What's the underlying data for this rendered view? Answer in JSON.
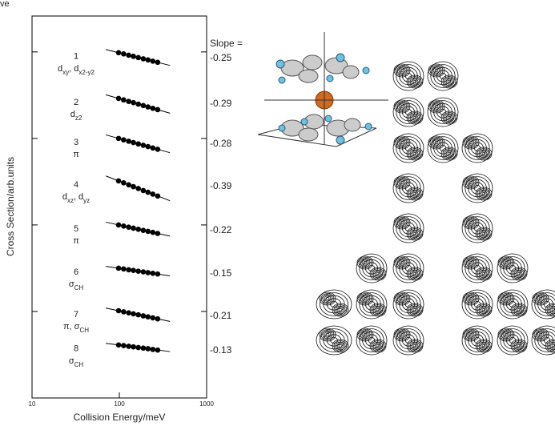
{
  "corner_text": "ve",
  "chart_data": {
    "type": "loglog-scatter-fit",
    "xlabel": "Collision Energy/meV",
    "ylabel": "Cross Section/arb.units",
    "slope_header": "Slope =",
    "xscale": "log",
    "yscale": "log",
    "xlim": [
      10,
      1000
    ],
    "xticks": [
      10,
      100,
      1000
    ],
    "ylim": [
      1,
      26000
    ],
    "yticks": [
      10,
      100,
      1000,
      10000
    ],
    "color": "#000000",
    "x": [
      98,
      112,
      128,
      145,
      165,
      188,
      213,
      242,
      275
    ],
    "series": [
      {
        "name": "1",
        "label": [
          "d",
          "xy",
          ", d",
          "x2-y2"
        ],
        "slope": -0.25,
        "values": [
          9800,
          9480,
          9160,
          8890,
          8600,
          8330,
          8080,
          7820,
          7580
        ]
      },
      {
        "name": "2",
        "label": [
          "d",
          "z2"
        ],
        "slope": -0.29,
        "values": [
          2900,
          2790,
          2680,
          2590,
          2490,
          2400,
          2310,
          2230,
          2150
        ]
      },
      {
        "name": "3",
        "label": [
          "π"
        ],
        "slope": -0.28,
        "values": [
          1000,
          963,
          928,
          896,
          864,
          833,
          805,
          776,
          749
        ]
      },
      {
        "name": "4",
        "label": [
          "d",
          "xz",
          ", d",
          "yz"
        ],
        "slope": -0.39,
        "values": [
          323,
          307,
          291,
          277,
          264,
          250,
          239,
          227,
          216
        ]
      },
      {
        "name": "5",
        "label": [
          "π"
        ],
        "slope": -0.22,
        "values": [
          100,
          97.1,
          94.3,
          91.7,
          89.2,
          86.6,
          84.3,
          82.0,
          79.7
        ]
      },
      {
        "name": "6",
        "label": [
          "σ",
          "CH"
        ],
        "slope": -0.15,
        "values": [
          31.6,
          31.0,
          30.3,
          29.8,
          29.2,
          28.7,
          28.1,
          27.6,
          27.1
        ]
      },
      {
        "name": "7",
        "label": [
          "π, σ",
          "CH"
        ],
        "slope": -0.21,
        "values": [
          10.2,
          9.91,
          9.64,
          9.39,
          9.15,
          8.89,
          8.66,
          8.44,
          8.21
        ]
      },
      {
        "name": "8",
        "label": [
          "σ",
          "CH"
        ],
        "slope": -0.13,
        "values": [
          4.1,
          4.03,
          3.96,
          3.9,
          3.83,
          3.77,
          3.71,
          3.64,
          3.58
        ]
      }
    ]
  }
}
